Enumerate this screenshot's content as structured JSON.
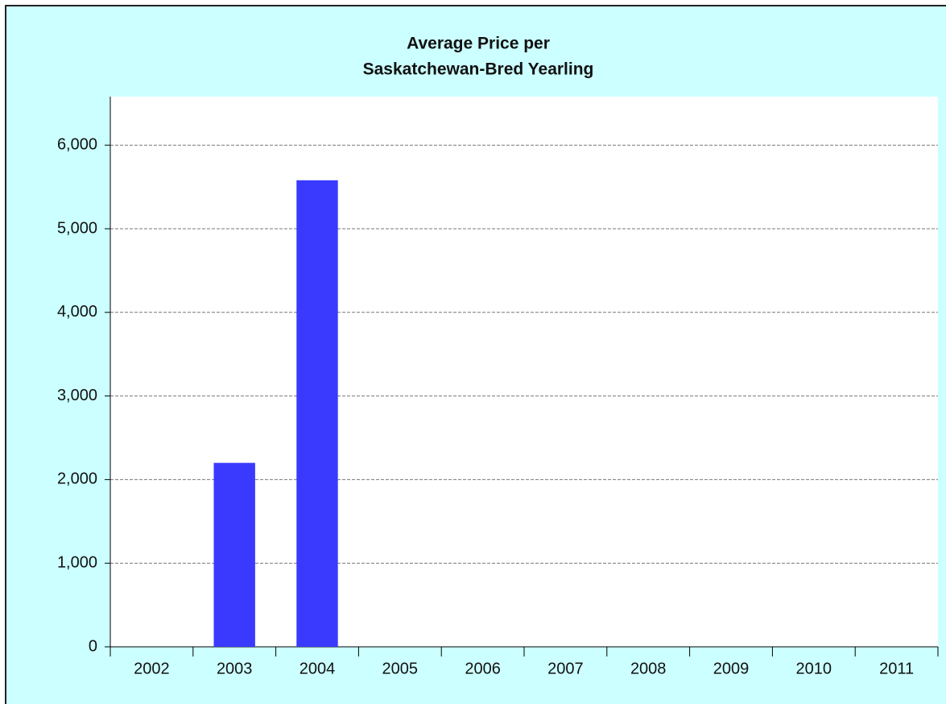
{
  "chart_data": {
    "type": "bar",
    "title": [
      "Average Price per",
      "Saskatchewan-Bred Yearling"
    ],
    "categories": [
      "2002",
      "2003",
      "2004",
      "2005",
      "2006",
      "2007",
      "2008",
      "2009",
      "2010",
      "2011"
    ],
    "values": [
      null,
      2200,
      5580,
      null,
      null,
      null,
      null,
      null,
      null,
      null
    ],
    "color": "#3a3aff",
    "ylim": [
      0,
      6580
    ],
    "yticks": [
      0,
      {
        "value": 1000,
        "label": "1,000"
      },
      {
        "value": 2000,
        "label": "2,000"
      },
      {
        "value": 3000,
        "label": "3,000"
      },
      {
        "value": 4000,
        "label": "4,000"
      },
      {
        "value": 5000,
        "label": "5,000"
      },
      {
        "value": 6000,
        "label": "6,000"
      }
    ],
    "grid": true
  }
}
